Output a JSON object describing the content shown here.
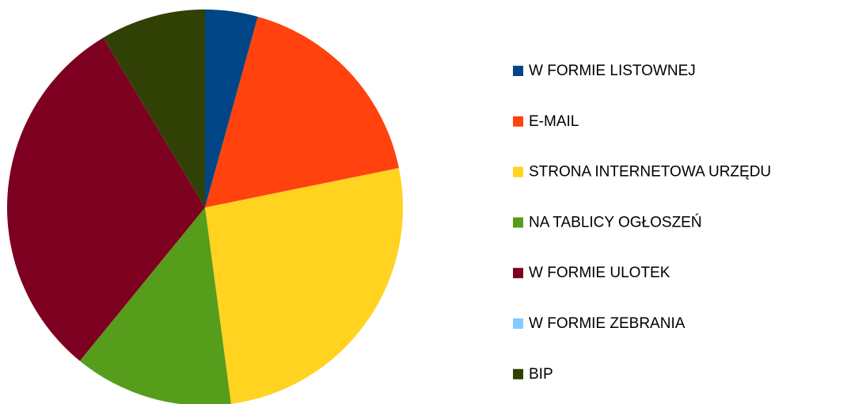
{
  "chart_data": {
    "type": "pie",
    "categories": [
      "W FORMIE LISTOWNEJ",
      "E-MAIL",
      "STRONA INTERNETOWA URZĘDU",
      "NA TABLICY OGŁOSZEŃ",
      "W FORMIE ULOTEK",
      "W FORMIE ZEBRANIA",
      "BIP"
    ],
    "values": [
      4.3,
      17.5,
      26.1,
      13,
      30.5,
      0,
      8.6
    ],
    "colors": [
      "#004586",
      "#ff420e",
      "#ffd320",
      "#579d1c",
      "#7e0021",
      "#83caff",
      "#314004"
    ],
    "legend": "right"
  }
}
